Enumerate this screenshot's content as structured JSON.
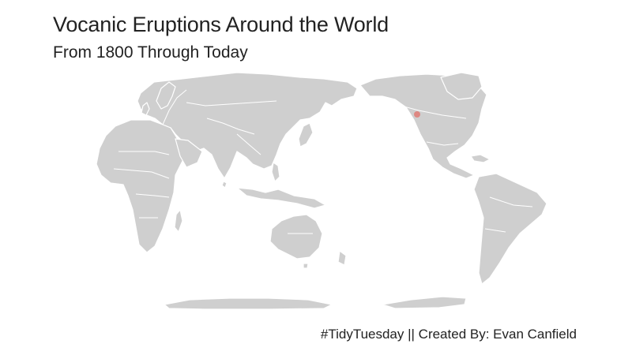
{
  "title": "Vocanic Eruptions Around the World",
  "subtitle": "From 1800 Through Today",
  "caption": "#TidyTuesday || Created By: Evan Canfield",
  "map": {
    "projection": "world, Pacific-centred",
    "land_color": "#cfcfcf",
    "border_color": "#ffffff",
    "eruption_color": "#e07b76"
  },
  "eruptions": [
    {
      "region": "Pacific Northwest, North America"
    }
  ]
}
